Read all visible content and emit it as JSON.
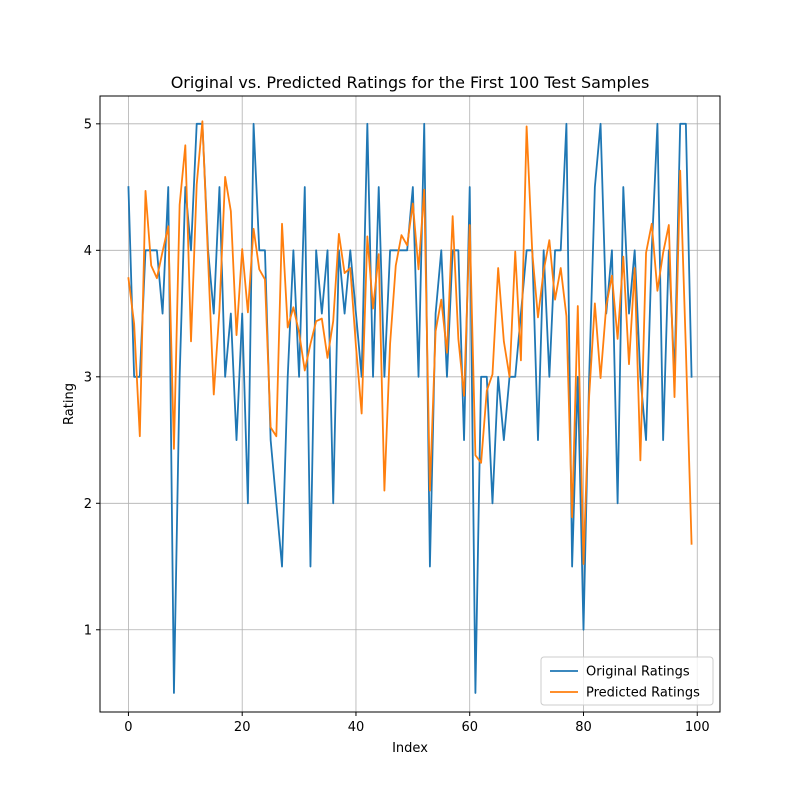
{
  "chart_data": {
    "type": "line",
    "title": "Original vs. Predicted Ratings for the First 100 Test Samples",
    "xlabel": "Index",
    "ylabel": "Rating",
    "xlim": [
      -5,
      104
    ],
    "ylim": [
      0.35,
      5.22
    ],
    "xticks": [
      0,
      20,
      40,
      60,
      80,
      100
    ],
    "yticks": [
      1,
      2,
      3,
      4,
      5
    ],
    "grid": true,
    "legend_position": "lower right",
    "x": [
      0,
      1,
      2,
      3,
      4,
      5,
      6,
      7,
      8,
      9,
      10,
      11,
      12,
      13,
      14,
      15,
      16,
      17,
      18,
      19,
      20,
      21,
      22,
      23,
      24,
      25,
      26,
      27,
      28,
      29,
      30,
      31,
      32,
      33,
      34,
      35,
      36,
      37,
      38,
      39,
      40,
      41,
      42,
      43,
      44,
      45,
      46,
      47,
      48,
      49,
      50,
      51,
      52,
      53,
      54,
      55,
      56,
      57,
      58,
      59,
      60,
      61,
      62,
      63,
      64,
      65,
      66,
      67,
      68,
      69,
      70,
      71,
      72,
      73,
      74,
      75,
      76,
      77,
      78,
      79,
      80,
      81,
      82,
      83,
      84,
      85,
      86,
      87,
      88,
      89,
      90,
      91,
      92,
      93,
      94,
      95,
      96,
      97,
      98,
      99
    ],
    "series": [
      {
        "name": "Original Ratings",
        "color": "#1f77b4",
        "values": [
          4.5,
          3.0,
          3.0,
          4.0,
          4.0,
          4.0,
          3.5,
          4.5,
          0.5,
          3.0,
          4.5,
          4.0,
          5.0,
          5.0,
          4.0,
          3.5,
          4.5,
          3.0,
          3.5,
          2.5,
          3.5,
          2.0,
          5.0,
          4.0,
          4.0,
          2.5,
          2.0,
          1.5,
          3.0,
          4.0,
          3.0,
          4.5,
          1.5,
          4.0,
          3.5,
          4.0,
          2.0,
          4.0,
          3.5,
          4.0,
          3.5,
          3.0,
          5.0,
          3.0,
          4.5,
          3.0,
          4.0,
          4.0,
          4.0,
          4.0,
          4.5,
          3.0,
          5.0,
          1.5,
          3.5,
          4.0,
          3.0,
          4.0,
          4.0,
          2.5,
          4.5,
          0.5,
          3.0,
          3.0,
          2.0,
          3.0,
          2.5,
          3.0,
          3.0,
          3.5,
          4.0,
          4.0,
          2.5,
          4.0,
          3.0,
          4.0,
          4.0,
          5.0,
          1.5,
          3.0,
          1.0,
          3.0,
          4.5,
          5.0,
          3.5,
          4.0,
          2.0,
          4.5,
          3.5,
          4.0,
          3.0,
          2.5,
          4.0,
          5.0,
          2.5,
          4.0,
          3.0,
          5.0,
          5.0,
          3.0
        ]
      },
      {
        "name": "Predicted Ratings",
        "color": "#ff7f0e",
        "values": [
          3.78,
          3.42,
          2.53,
          4.47,
          3.88,
          3.78,
          3.99,
          4.19,
          2.43,
          4.36,
          4.83,
          3.28,
          4.52,
          5.02,
          3.93,
          2.86,
          3.53,
          4.58,
          4.31,
          3.33,
          4.01,
          3.51,
          4.17,
          3.85,
          3.77,
          2.6,
          2.53,
          4.21,
          3.39,
          3.55,
          3.35,
          3.05,
          3.26,
          3.44,
          3.46,
          3.15,
          3.44,
          4.13,
          3.82,
          3.86,
          3.24,
          2.71,
          4.11,
          3.54,
          3.97,
          2.1,
          3.26,
          3.88,
          4.12,
          4.04,
          4.37,
          3.85,
          4.48,
          2.1,
          3.36,
          3.61,
          3.19,
          4.27,
          3.3,
          2.85,
          4.2,
          2.38,
          2.32,
          2.89,
          3.02,
          3.86,
          3.28,
          3.0,
          3.99,
          3.13,
          4.98,
          3.98,
          3.47,
          3.84,
          4.08,
          3.61,
          3.86,
          3.48,
          1.89,
          3.56,
          1.52,
          2.85,
          3.58,
          2.99,
          3.56,
          3.8,
          3.3,
          3.95,
          3.1,
          3.86,
          2.34,
          3.98,
          4.21,
          3.68,
          3.98,
          4.2,
          2.84,
          4.63,
          3.22,
          1.68
        ]
      }
    ]
  }
}
